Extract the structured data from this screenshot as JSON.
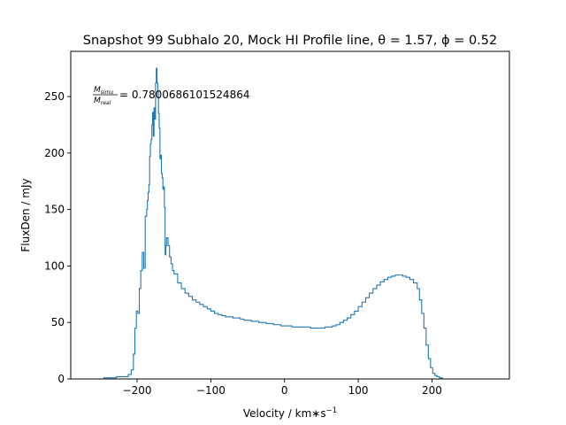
{
  "chart_data": {
    "type": "line",
    "style": "step",
    "title": "Snapshot 99 Subhalo 20, Mock HI Profile line, θ = 1.57, ϕ = 0.52",
    "xlabel": "Velocity / km∗s",
    "xlabel_exp": "−1",
    "ylabel": "FluxDen / mJy",
    "annotation": {
      "num": "M",
      "num_sub": "simu",
      "den": "M",
      "den_sub": "real",
      "value": "= 0.7800686101524864"
    },
    "xlim": [
      -290,
      305
    ],
    "ylim": [
      0,
      290
    ],
    "xticks": [
      -200,
      -100,
      0,
      100,
      200
    ],
    "xtick_labels": [
      "−200",
      "−100",
      "0",
      "100",
      "200"
    ],
    "yticks": [
      0,
      50,
      100,
      150,
      200,
      250
    ],
    "ytick_labels": [
      "0",
      "50",
      "100",
      "150",
      "200",
      "250"
    ],
    "grid": false,
    "line_color": "#1f77b4",
    "series": [
      {
        "x": [
          -262,
          -245,
          -228,
          -212,
          -208,
          -205,
          -203,
          -201,
          -199,
          -197,
          -195,
          -193,
          -191,
          -189,
          -187,
          -186,
          -185,
          -184,
          -183,
          -182,
          -181,
          -180,
          -179,
          -178,
          -177,
          -176,
          -175,
          -174,
          -173,
          -172,
          -171,
          -170,
          -169,
          -168,
          -167,
          -166,
          -165,
          -164,
          -163,
          -162,
          -161,
          -160,
          -158,
          -156,
          -154,
          -152,
          -150,
          -145,
          -140,
          -135,
          -130,
          -125,
          -120,
          -115,
          -110,
          -105,
          -100,
          -95,
          -90,
          -85,
          -80,
          -75,
          -70,
          -65,
          -60,
          -55,
          -50,
          -45,
          -40,
          -35,
          -30,
          -25,
          -20,
          -15,
          -10,
          -5,
          0,
          5,
          10,
          15,
          20,
          25,
          30,
          35,
          40,
          45,
          50,
          55,
          60,
          65,
          70,
          75,
          80,
          85,
          90,
          95,
          100,
          105,
          110,
          115,
          120,
          125,
          130,
          135,
          140,
          145,
          150,
          155,
          160,
          165,
          170,
          175,
          180,
          183,
          186,
          189,
          192,
          195,
          198,
          201,
          204,
          207,
          210,
          214,
          218,
          225,
          240,
          270
        ],
        "y": [
          0,
          1,
          2,
          4,
          8,
          22,
          45,
          60,
          58,
          80,
          96,
          112,
          98,
          144,
          150,
          158,
          165,
          172,
          197,
          208,
          212,
          225,
          236,
          215,
          240,
          230,
          262,
          275,
          262,
          255,
          235,
          222,
          195,
          198,
          182,
          178,
          168,
          170,
          152,
          110,
          118,
          125,
          118,
          108,
          102,
          96,
          93,
          85,
          80,
          76,
          73,
          70,
          68,
          66,
          64,
          62,
          60,
          58,
          57,
          56,
          55,
          55,
          54,
          54,
          53,
          52,
          52,
          51,
          51,
          50,
          50,
          49,
          49,
          48,
          48,
          47,
          47,
          47,
          46,
          46,
          46,
          46,
          46,
          45,
          45,
          45,
          45,
          46,
          46,
          47,
          48,
          50,
          52,
          54,
          57,
          60,
          64,
          68,
          72,
          76,
          80,
          83,
          86,
          88,
          90,
          91,
          92,
          92,
          91,
          90,
          88,
          85,
          80,
          70,
          58,
          45,
          30,
          18,
          10,
          5,
          3,
          2,
          1,
          0,
          0,
          0,
          0,
          0
        ]
      }
    ]
  }
}
